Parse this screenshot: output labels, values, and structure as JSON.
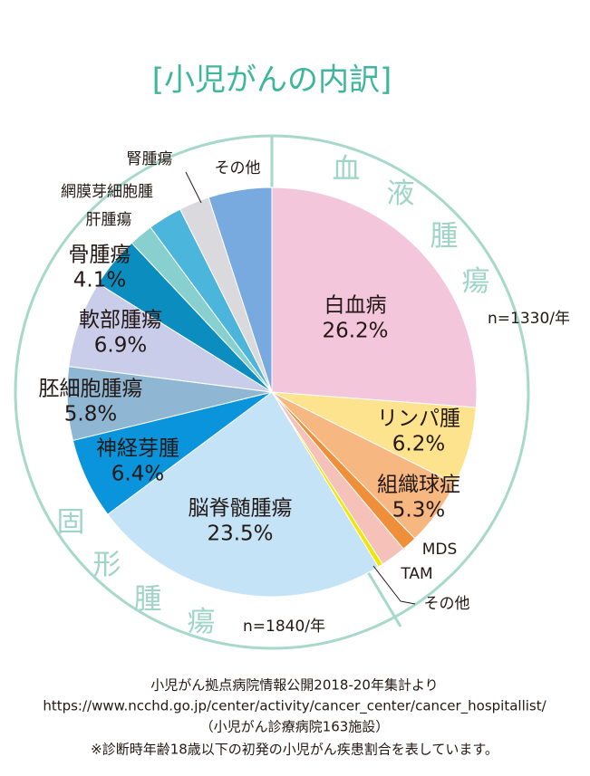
{
  "chart_data": {
    "type": "pie",
    "title": "[小児がんの内訳]",
    "categories": [
      "白血病",
      "リンパ腫",
      "組織球症",
      "MDS",
      "TAM",
      "その他",
      "脳脊髄腫瘍",
      "神経芽腫",
      "胚細胞腫瘍",
      "軟部腫瘍",
      "骨腫瘍",
      "肝腫瘍",
      "網膜芽細胞腫",
      "腎腫瘍",
      "その他"
    ],
    "values": [
      26.2,
      6.2,
      5.3,
      1.2,
      2.0,
      0.4,
      23.5,
      6.4,
      5.8,
      6.9,
      4.1,
      1.9,
      2.7,
      2.4,
      5.0
    ],
    "value_labels": [
      "26.2%",
      "6.2%",
      "5.3%",
      null,
      null,
      null,
      "23.5%",
      "6.4%",
      "5.8%",
      "6.9%",
      "4.1%",
      null,
      null,
      null,
      null
    ],
    "colors": [
      "#f4c6dc",
      "#fde38e",
      "#f6b781",
      "#ef8f3a",
      "#f5c1b8",
      "#f2e600",
      "#c5e3f6",
      "#0a94dc",
      "#8fb7d3",
      "#c9cde9",
      "#0b8dbf",
      "#88d0d0",
      "#4cb5dc",
      "#d9d9de",
      "#78aadf"
    ],
    "groups": [
      {
        "name": "血液腫瘍",
        "n": "n=1330/年"
      },
      {
        "name": "固形腫瘍",
        "n": "n=1840/年"
      }
    ],
    "notes": [
      "小児がん拠点病院情報公開2018-20年集計より",
      "https://www.ncchd.go.jp/center/activity/cancer_center/cancer_hospitallist/",
      "（小児がん診療病院163施設）",
      "※診断時年齢18歳以下の初発の小児がん疾患割合を表しています。"
    ]
  }
}
